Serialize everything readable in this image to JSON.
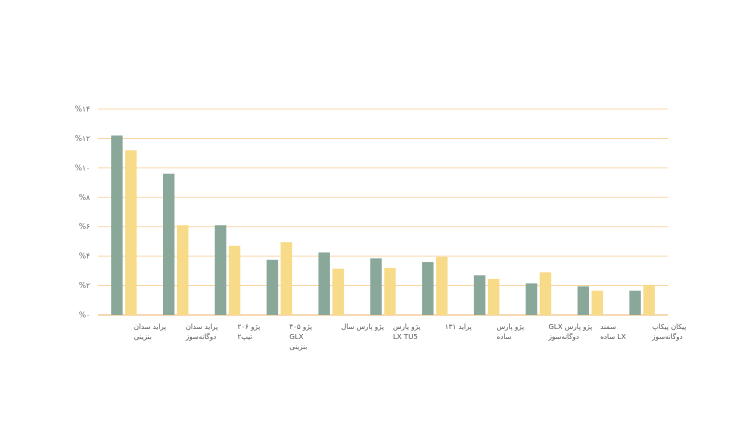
{
  "chart_data": {
    "type": "bar",
    "title": "",
    "xlabel": "",
    "ylabel": "",
    "ylim": [
      0,
      14
    ],
    "y_ticks": [
      "%۰",
      "%۲",
      "%۴",
      "%۶",
      "%۸",
      "%۱۰",
      "%۱۲",
      "%۱۴"
    ],
    "y_tick_values": [
      0,
      2,
      4,
      6,
      8,
      10,
      12,
      14
    ],
    "grid": true,
    "legend": "none",
    "categories": [
      [
        "پراید سدان",
        "بنزینی"
      ],
      [
        "پراید سدان",
        "دوگانه‌سوز"
      ],
      [
        "پژو ۲۰۶",
        "تیپ۲"
      ],
      [
        "پژو ۴۰۵",
        "GLX",
        "بنزینی"
      ],
      [
        "پژو پارس سال"
      ],
      [
        "پژو پارس",
        "LX TU5"
      ],
      [
        "پراید ۱۳۱"
      ],
      [
        "پژو پارس",
        "ساده"
      ],
      [
        "پژو پارس GLX",
        "دوگانه‌سوز"
      ],
      [
        "سمند",
        "LX ساده"
      ],
      [
        "پیکان پیکاپ",
        "دوگانه‌سوز"
      ]
    ],
    "series": [
      {
        "color": "#8aa899",
        "values": [
          12.2,
          9.6,
          6.1,
          3.75,
          4.25,
          3.85,
          3.6,
          2.7,
          2.15,
          1.95,
          1.65
        ]
      },
      {
        "color": "#f8db88",
        "values": [
          11.2,
          6.1,
          4.7,
          4.95,
          3.15,
          3.2,
          3.95,
          2.45,
          2.9,
          1.65,
          2.05
        ]
      }
    ]
  }
}
